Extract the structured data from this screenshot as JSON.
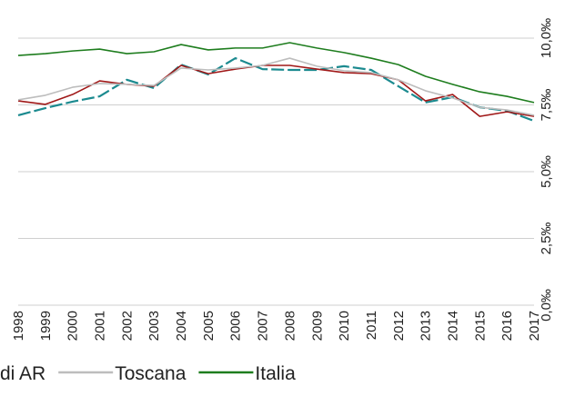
{
  "chart_data": {
    "type": "line",
    "x": [
      "1998",
      "1999",
      "2000",
      "2001",
      "2002",
      "2003",
      "2004",
      "2005",
      "2006",
      "2007",
      "2008",
      "2009",
      "2010",
      "2011",
      "2012",
      "2013",
      "2014",
      "2015",
      "2016",
      "2017"
    ],
    "series": [
      {
        "color": "#1b8a8f",
        "dashed": true,
        "values": [
          7.11,
          7.38,
          7.62,
          7.82,
          8.44,
          8.13,
          9.01,
          8.64,
          9.25,
          8.84,
          8.81,
          8.81,
          8.95,
          8.81,
          8.2,
          7.59,
          7.79,
          7.41,
          7.28,
          6.9
        ]
      },
      {
        "name": "di AR",
        "color": "#a01818",
        "values": [
          7.65,
          7.52,
          7.89,
          8.4,
          8.27,
          8.2,
          8.98,
          8.67,
          8.84,
          8.98,
          8.98,
          8.84,
          8.71,
          8.67,
          8.44,
          7.65,
          7.89,
          7.07,
          7.24,
          7.07
        ]
      },
      {
        "name": "Toscana",
        "color": "#bdbdbd",
        "values": [
          7.69,
          7.86,
          8.16,
          8.3,
          8.27,
          8.23,
          8.88,
          8.81,
          8.88,
          8.98,
          9.25,
          8.95,
          8.78,
          8.71,
          8.44,
          8.03,
          7.76,
          7.41,
          7.31,
          7.11
        ]
      },
      {
        "name": "Italia",
        "color": "#1e7d1e",
        "values": [
          9.35,
          9.42,
          9.52,
          9.59,
          9.42,
          9.49,
          9.76,
          9.56,
          9.63,
          9.63,
          9.83,
          9.63,
          9.46,
          9.25,
          9.01,
          8.57,
          8.27,
          7.99,
          7.82,
          7.59
        ]
      }
    ],
    "ylim": [
      0,
      10
    ],
    "yticks": [
      {
        "value": 0,
        "label": "0,0‰"
      },
      {
        "value": 2.5,
        "label": "2,5‰"
      },
      {
        "value": 5,
        "label": "5,0‰"
      },
      {
        "value": 7.5,
        "label": "7,5‰"
      },
      {
        "value": 10,
        "label": "10,0‰"
      }
    ],
    "grid": true
  }
}
